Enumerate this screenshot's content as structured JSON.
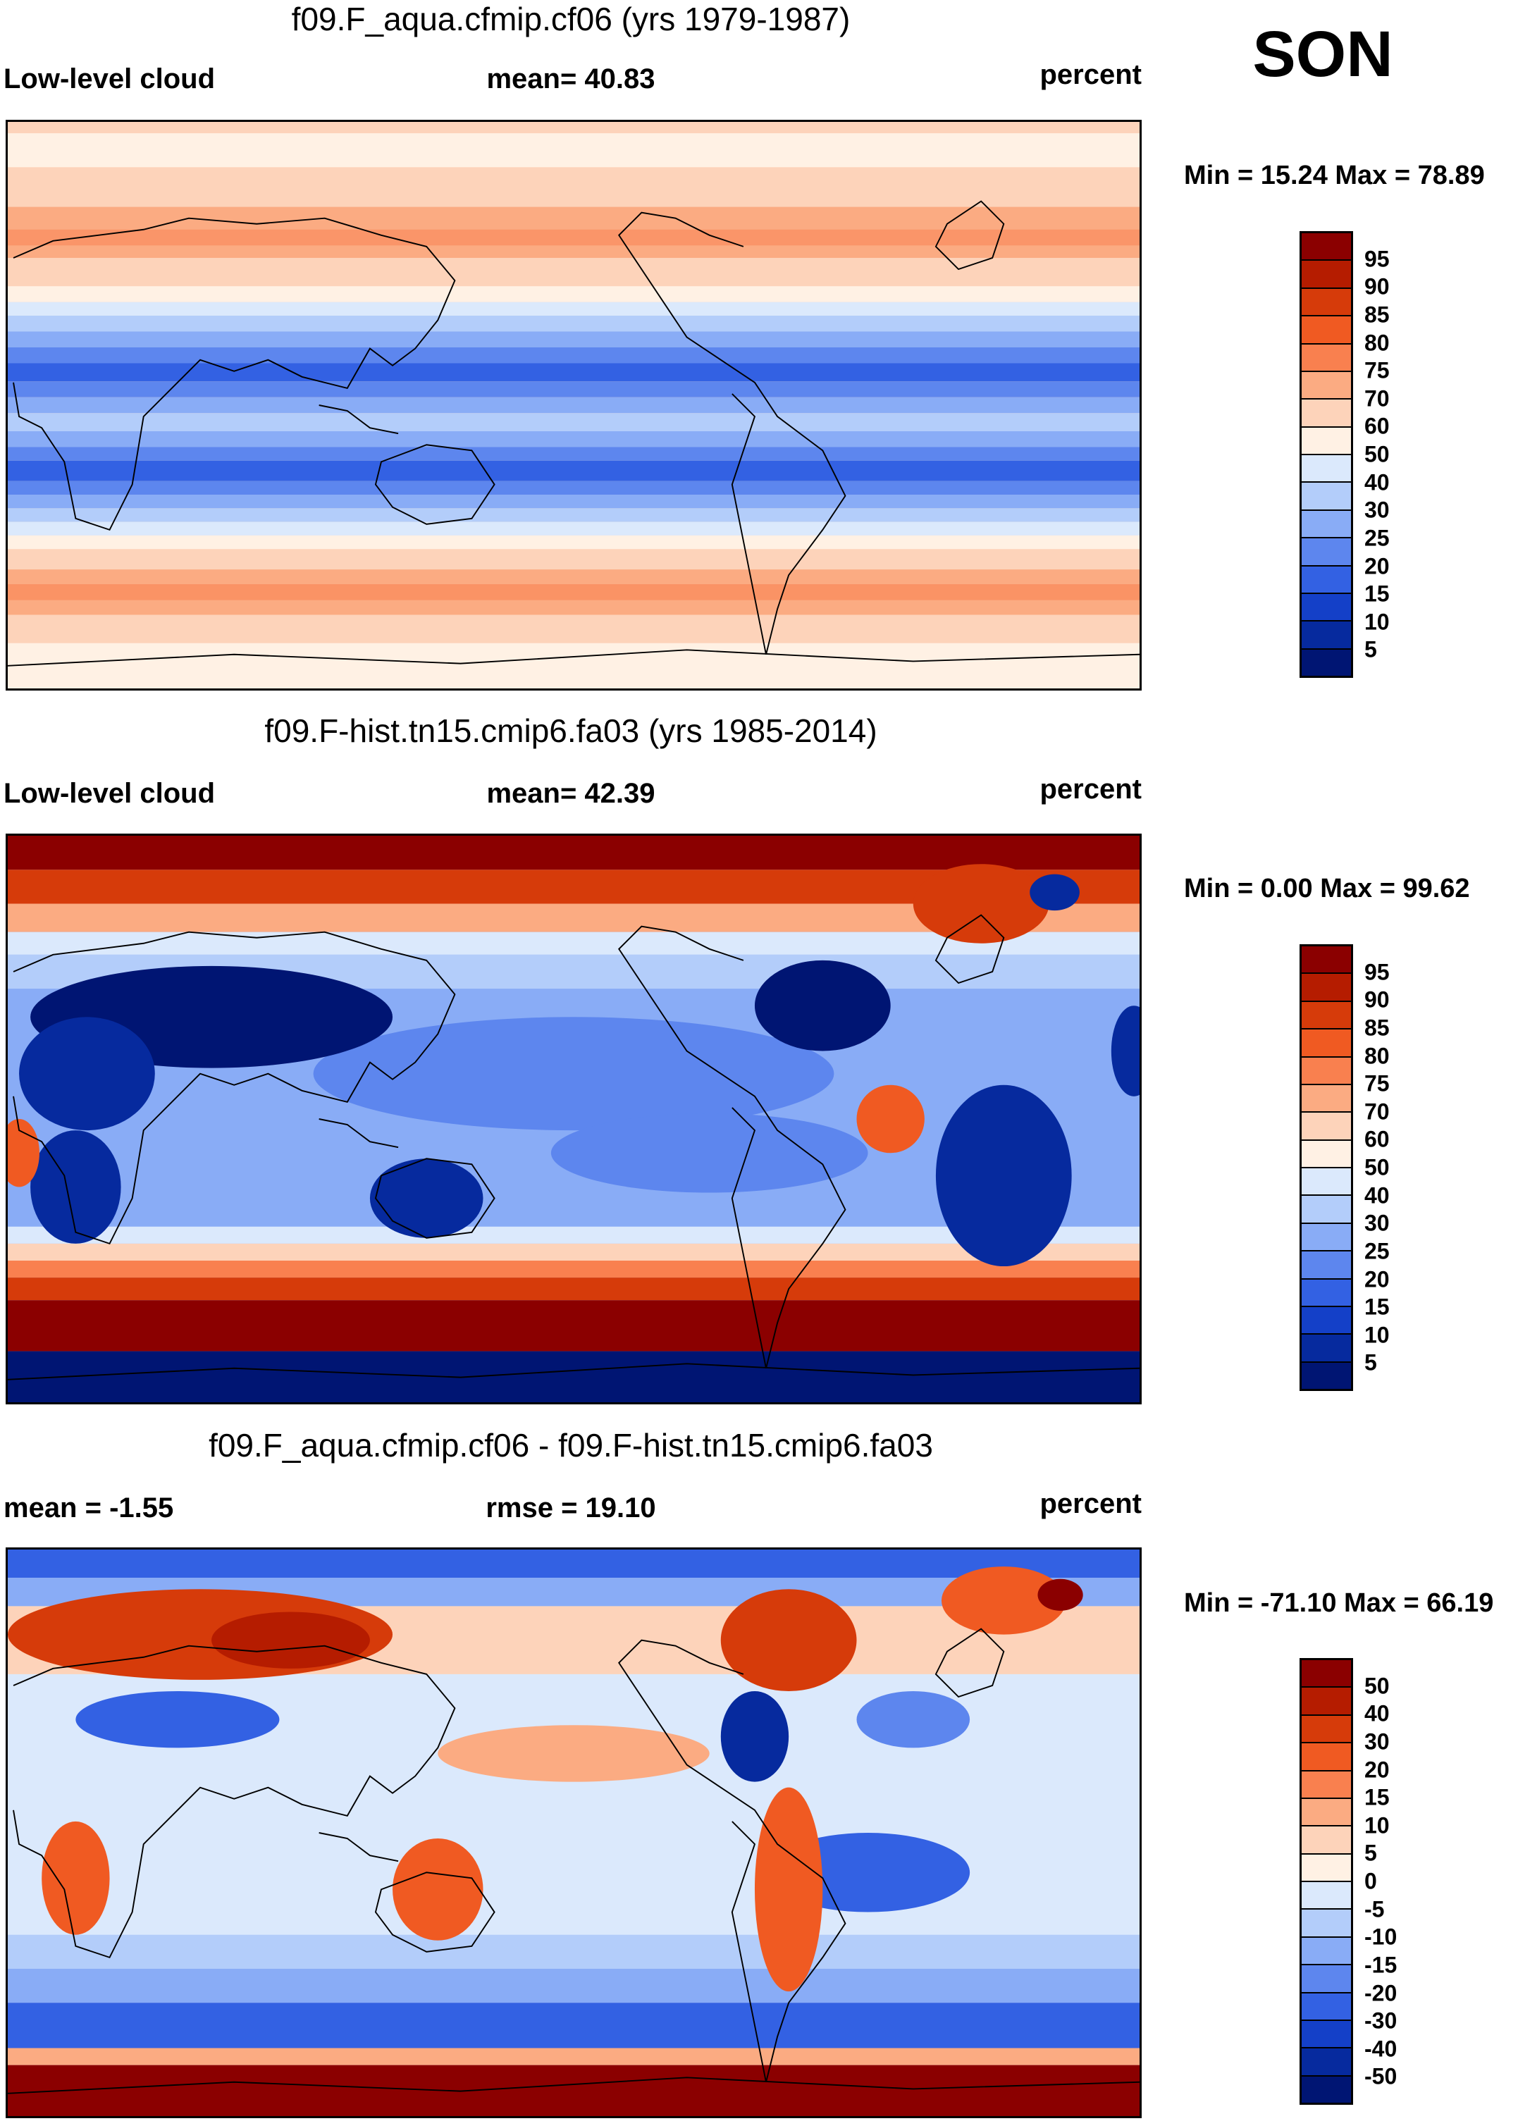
{
  "season": "SON",
  "panels": [
    {
      "title": "f09.F_aqua.cfmip.cf06 (yrs 1979-1987)",
      "left_label": "Low-level cloud",
      "center_label": "mean=  40.83",
      "right_label": "percent",
      "minmax": "Min =  15.24 Max =  78.89",
      "colorbar": {
        "ticks": [
          "95",
          "90",
          "85",
          "80",
          "75",
          "70",
          "60",
          "50",
          "40",
          "30",
          "25",
          "20",
          "15",
          "10",
          "5"
        ],
        "colors": [
          "#8b0000",
          "#b51c00",
          "#d63b0a",
          "#f05a22",
          "#f9804f",
          "#fbab82",
          "#fdd3ba",
          "#fff1e4",
          "#dbe9fc",
          "#b3cdfa",
          "#89acf6",
          "#5d86ee",
          "#3361e3",
          "#1440c8",
          "#062a9e",
          "#001573"
        ]
      }
    },
    {
      "title": "f09.F-hist.tn15.cmip6.fa03 (yrs 1985-2014)",
      "left_label": "Low-level cloud",
      "center_label": "mean=  42.39",
      "right_label": "percent",
      "minmax": "Min =   0.00 Max =  99.62",
      "colorbar": {
        "ticks": [
          "95",
          "90",
          "85",
          "80",
          "75",
          "70",
          "60",
          "50",
          "40",
          "30",
          "25",
          "20",
          "15",
          "10",
          "5"
        ],
        "colors": [
          "#8b0000",
          "#b51c00",
          "#d63b0a",
          "#f05a22",
          "#f9804f",
          "#fbab82",
          "#fdd3ba",
          "#fff1e4",
          "#dbe9fc",
          "#b3cdfa",
          "#89acf6",
          "#5d86ee",
          "#3361e3",
          "#1440c8",
          "#062a9e",
          "#001573"
        ]
      }
    },
    {
      "title": "f09.F_aqua.cfmip.cf06 - f09.F-hist.tn15.cmip6.fa03",
      "left_label": "mean =  -1.55",
      "center_label": "rmse =  19.10",
      "right_label": "percent",
      "minmax": "Min = -71.10 Max =  66.19",
      "colorbar": {
        "ticks": [
          "50",
          "40",
          "30",
          "20",
          "15",
          "10",
          "5",
          "0",
          "-5",
          "-10",
          "-15",
          "-20",
          "-30",
          "-40",
          "-50"
        ],
        "colors": [
          "#8b0000",
          "#b51c00",
          "#d63b0a",
          "#f05a22",
          "#f9804f",
          "#fbab82",
          "#fdd3ba",
          "#fff1e4",
          "#dbe9fc",
          "#b3cdfa",
          "#89acf6",
          "#5d86ee",
          "#3361e3",
          "#1440c8",
          "#062a9e",
          "#001573"
        ]
      }
    }
  ]
}
